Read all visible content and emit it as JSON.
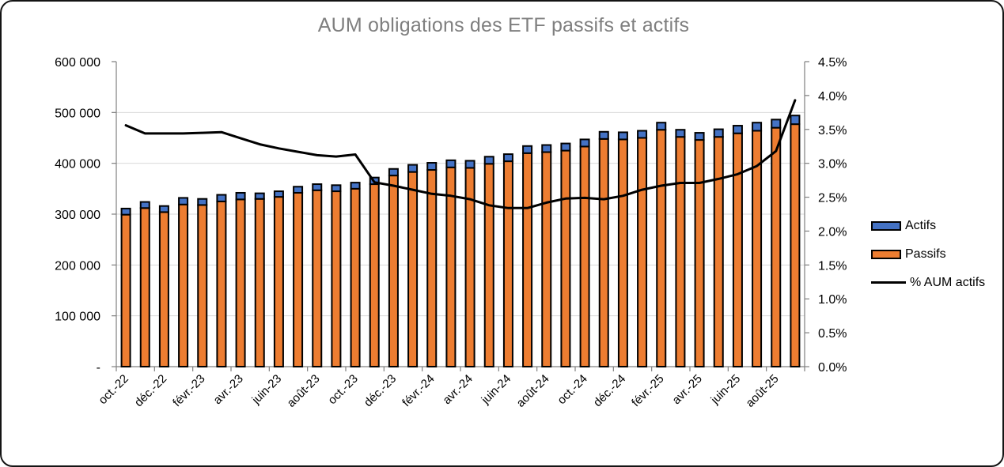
{
  "page": {
    "background": "#FFFFFF",
    "frame_border_color": "#141414"
  },
  "chart_data": {
    "type": "bar",
    "subtype": "stacked-bars-with-secondary-axis-line",
    "title": "AUM obligations des ETF passifs et actifs",
    "title_color": "#7F7F7F",
    "categories": [
      "oct.-22",
      "nov.-22",
      "déc.-22",
      "janv.-23",
      "févr.-23",
      "mars-23",
      "avr.-23",
      "mai-23",
      "juin-23",
      "juil.-23",
      "août-23",
      "sept.-23",
      "oct.-23",
      "nov.-23",
      "déc.-23",
      "janv.-24",
      "févr.-24",
      "mars-24",
      "avr.-24",
      "mai-24",
      "juin-24",
      "juil.-24",
      "août-24",
      "sept.-24",
      "oct.-24",
      "nov.-24",
      "déc.-24",
      "janv.-25",
      "févr.-25",
      "mars-25",
      "avr.-25",
      "mai-25",
      "juin-25",
      "juil.-25",
      "août-25",
      "sept.-25"
    ],
    "x_tick_label_interval": 2,
    "x_labels_shown": [
      "oct.-22",
      "déc.-22",
      "févr.-23",
      "avr.-23",
      "juin-23",
      "août-23",
      "oct.-23",
      "déc.-23",
      "févr.-24",
      "avr.-24",
      "juin-24",
      "août-24",
      "oct.-24",
      "déc.-24",
      "févr.-25",
      "avr.-25",
      "juin-25",
      "août-25"
    ],
    "series": [
      {
        "name": "Passifs",
        "type": "bar",
        "stack_order": 1,
        "color": "#ED7D31",
        "border_color": "#000000",
        "axis": "left",
        "values": [
          299000,
          312000,
          304000,
          319000,
          318000,
          325000,
          329000,
          330000,
          334000,
          342000,
          347000,
          345000,
          350000,
          359000,
          376000,
          383000,
          387000,
          392000,
          391000,
          399000,
          404000,
          420000,
          422000,
          425000,
          433000,
          448000,
          447000,
          450000,
          466000,
          452000,
          446000,
          452000,
          459000,
          464000,
          470000,
          477000
        ]
      },
      {
        "name": "Actifs",
        "type": "bar",
        "stack_order": 2,
        "color": "#4472C4",
        "border_color": "#000000",
        "axis": "left",
        "values": [
          12000,
          12000,
          12000,
          13000,
          12000,
          13000,
          13000,
          11000,
          11000,
          12000,
          12000,
          12000,
          12000,
          13000,
          13000,
          14000,
          14000,
          14000,
          14000,
          14000,
          14000,
          14000,
          14000,
          14000,
          14000,
          14000,
          14000,
          14000,
          14000,
          14000,
          14000,
          15000,
          15000,
          16000,
          16000,
          17000
        ]
      },
      {
        "name": "% AUM actifs",
        "type": "line",
        "color": "#000000",
        "axis": "right",
        "values": [
          3.56,
          3.44,
          3.44,
          3.44,
          3.45,
          3.46,
          3.37,
          3.28,
          3.22,
          3.17,
          3.12,
          3.1,
          3.13,
          2.72,
          2.67,
          2.61,
          2.55,
          2.52,
          2.47,
          2.38,
          2.34,
          2.34,
          2.42,
          2.48,
          2.49,
          2.47,
          2.52,
          2.61,
          2.67,
          2.71,
          2.71,
          2.77,
          2.84,
          2.96,
          3.18,
          3.93
        ]
      }
    ],
    "left_axis": {
      "min": 0,
      "max": 600000,
      "step": 100000,
      "tick_labels": [
        "-",
        "100 000",
        "200 000",
        "300 000",
        "400 000",
        "500 000",
        "600 000"
      ]
    },
    "right_axis": {
      "min": 0,
      "max": 4.5,
      "step": 0.5,
      "tick_labels": [
        "0.0%",
        "0.5%",
        "1.0%",
        "1.5%",
        "2.0%",
        "2.5%",
        "3.0%",
        "3.5%",
        "4.0%",
        "4.5%"
      ]
    },
    "grid": {
      "show_horizontal": true,
      "gridline_color": "#D9D9D9",
      "axis_color": "#808080",
      "label_color": "#000000"
    },
    "legend": {
      "position": "right",
      "items": [
        {
          "label": "Actifs",
          "color": "#4472C4",
          "swatch": "box"
        },
        {
          "label": "Passifs",
          "color": "#ED7D31",
          "swatch": "box"
        },
        {
          "label": "% AUM actifs",
          "color": "#000000",
          "swatch": "line"
        }
      ]
    }
  }
}
